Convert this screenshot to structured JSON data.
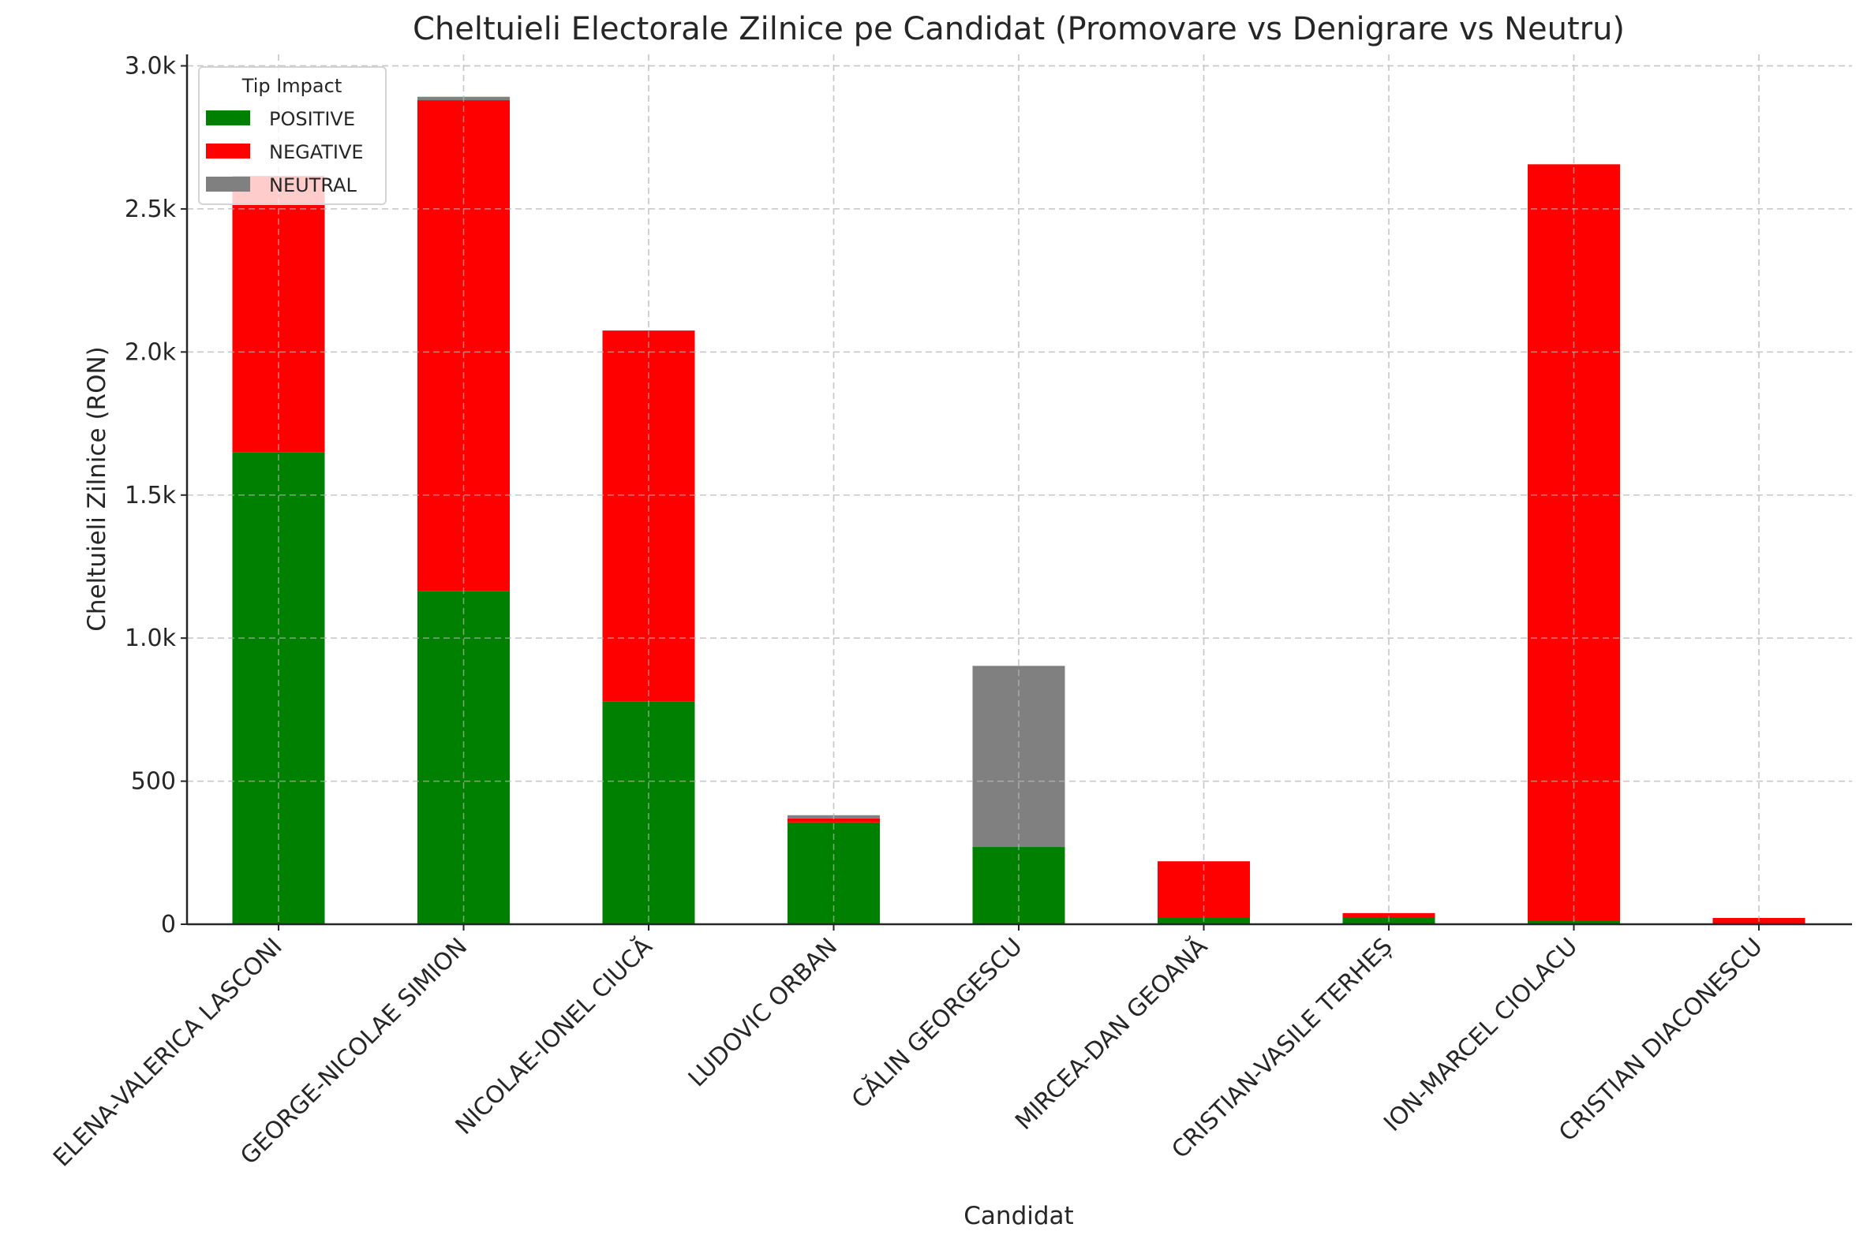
{
  "chart_data": {
    "type": "bar",
    "stacked": true,
    "title": "Cheltuieli Electorale Zilnice pe Candidat (Promovare vs Denigrare vs Neutru)",
    "xlabel": "Candidat",
    "ylabel": "Cheltuieli Zilnice (RON)",
    "ylim": [
      0,
      3040
    ],
    "yticks": [
      0,
      500,
      1000,
      1500,
      2000,
      2500,
      3000
    ],
    "ytick_labels": [
      "0",
      "500",
      "1.0k",
      "1.5k",
      "2.0k",
      "2.5k",
      "3.0k"
    ],
    "grid": true,
    "legend": {
      "title": "Tip Impact",
      "placement": "top-left"
    },
    "categories": [
      "ELENA-VALERICA LASCONI",
      "GEORGE-NICOLAE SIMION",
      "NICOLAE-IONEL CIUCĂ",
      "LUDOVIC ORBAN",
      "CĂLIN GEORGESCU",
      "MIRCEA-DAN GEOANĂ",
      "CRISTIAN-VASILE TERHEȘ",
      "ION-MARCEL CIOLACU",
      "CRISTIAN DIACONESCU"
    ],
    "series": [
      {
        "name": "POSITIVE",
        "color": "#008000",
        "values": [
          1650,
          1165,
          778,
          356,
          270,
          22,
          22,
          11,
          0
        ]
      },
      {
        "name": "NEGATIVE",
        "color": "#ff0000",
        "values": [
          965,
          1715,
          1297,
          14,
          0,
          198,
          17,
          2645,
          22
        ]
      },
      {
        "name": "NEUTRAL",
        "color": "#808080",
        "values": [
          0,
          12,
          0,
          11,
          633,
          0,
          0,
          0,
          0
        ]
      }
    ]
  }
}
